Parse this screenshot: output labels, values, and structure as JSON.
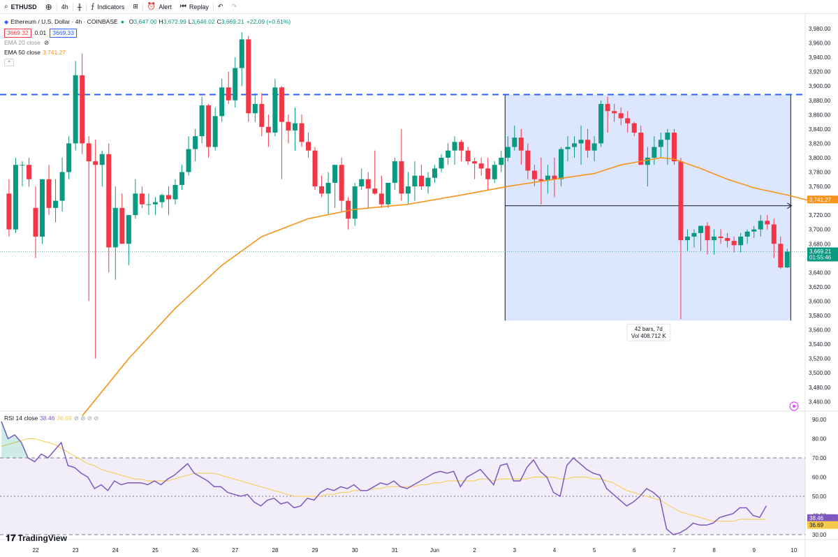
{
  "toolbar": {
    "symbol": "ETHUSD",
    "interval": "4h",
    "indicators_label": "Indicators",
    "alert_label": "Alert",
    "replay_label": "Replay"
  },
  "legend": {
    "title": "Ethereum / U.S. Dollar · 4h · COINBASE",
    "open_k": "O",
    "open": "3,647.00",
    "high_k": "H",
    "high": "3,672.99",
    "low_k": "L",
    "low": "3,646.02",
    "close_k": "C",
    "close": "3,669.21",
    "change": "+22.09 (+0.61%)",
    "bid": "3669.32",
    "spread": "0.01",
    "ask": "3669.33",
    "ema20": "EMA 20 close",
    "ema50": "EMA 50 close",
    "ema50_value": "3,741.27"
  },
  "rsi_legend": {
    "label": "RSI 14 close",
    "value1": "38.46",
    "value2": "36.69"
  },
  "measure": {
    "bars": "42 bars, 7d",
    "vol": "Vol 408.712 K"
  },
  "price_tags": {
    "ema": "3,741.27",
    "last": "3,669.21",
    "countdown": "01:55:46",
    "rsi1": "38.46",
    "rsi2": "36.69"
  },
  "brand": "TradingView",
  "colors": {
    "up": "#089981",
    "down": "#f23645",
    "ema": "#f7931a",
    "rsi": "#7e57c2",
    "rsi_ma": "#f7c948",
    "accent": "#2962ff"
  },
  "chart_data": [
    {
      "type": "candlestick",
      "title": "Ethereum / U.S. Dollar · 4h · COINBASE",
      "ylim": [
        3450,
        3990
      ],
      "y_ticks": [
        "3,980.00",
        "3,960.00",
        "3,940.00",
        "3,920.00",
        "3,900.00",
        "3,880.00",
        "3,860.00",
        "3,840.00",
        "3,820.00",
        "3,800.00",
        "3,780.00",
        "3,760.00",
        "3,740.00",
        "3,720.00",
        "3,700.00",
        "3,680.00",
        "3,660.00",
        "3,640.00",
        "3,620.00",
        "3,600.00",
        "3,580.00",
        "3,560.00",
        "3,540.00",
        "3,520.00",
        "3,500.00",
        "3,480.00",
        "3,460.00"
      ],
      "x_ticks": [
        {
          "label": "22",
          "bar": 4
        },
        {
          "label": "23",
          "bar": 10
        },
        {
          "label": "24",
          "bar": 16
        },
        {
          "label": "25",
          "bar": 22
        },
        {
          "label": "26",
          "bar": 28
        },
        {
          "label": "27",
          "bar": 34
        },
        {
          "label": "28",
          "bar": 40
        },
        {
          "label": "29",
          "bar": 46
        },
        {
          "label": "30",
          "bar": 52
        },
        {
          "label": "31",
          "bar": 58
        },
        {
          "label": "Jun",
          "bar": 64
        },
        {
          "label": "2",
          "bar": 70
        },
        {
          "label": "3",
          "bar": 76
        },
        {
          "label": "4",
          "bar": 82
        },
        {
          "label": "5",
          "bar": 88
        },
        {
          "label": "6",
          "bar": 94
        },
        {
          "label": "7",
          "bar": 100
        },
        {
          "label": "8",
          "bar": 106
        },
        {
          "label": "9",
          "bar": 112
        },
        {
          "label": "10",
          "bar": 118
        }
      ],
      "horizontal_line": 3888,
      "measure_box": {
        "from_bar": 75,
        "to_bar": 117,
        "from_price": 3888,
        "to_price": 3573,
        "arrow_price": 3733
      },
      "candles": [
        [
          3750,
          3770,
          3690,
          3700
        ],
        [
          3700,
          3800,
          3695,
          3790
        ],
        [
          3790,
          3795,
          3760,
          3790
        ],
        [
          3790,
          3800,
          3760,
          3770
        ],
        [
          3730,
          3760,
          3660,
          3690
        ],
        [
          3690,
          3770,
          3680,
          3770
        ],
        [
          3770,
          3790,
          3720,
          3730
        ],
        [
          3730,
          3770,
          3710,
          3740
        ],
        [
          3740,
          3800,
          3725,
          3780
        ],
        [
          3780,
          3830,
          3770,
          3820
        ],
        [
          3820,
          3935,
          3810,
          3915
        ],
        [
          3915,
          3945,
          3805,
          3820
        ],
        [
          3820,
          3830,
          3600,
          3795
        ],
        [
          3795,
          3825,
          3520,
          3790
        ],
        [
          3790,
          3810,
          3760,
          3805
        ],
        [
          3805,
          3820,
          3640,
          3675
        ],
        [
          3675,
          3760,
          3630,
          3730
        ],
        [
          3730,
          3750,
          3680,
          3680
        ],
        [
          3680,
          3720,
          3650,
          3720
        ],
        [
          3720,
          3770,
          3715,
          3750
        ],
        [
          3750,
          3760,
          3730,
          3735
        ],
        [
          3735,
          3750,
          3720,
          3735
        ],
        [
          3735,
          3745,
          3720,
          3738
        ],
        [
          3738,
          3750,
          3730,
          3748
        ],
        [
          3748,
          3760,
          3720,
          3742
        ],
        [
          3742,
          3770,
          3735,
          3762
        ],
        [
          3762,
          3790,
          3755,
          3780
        ],
        [
          3780,
          3830,
          3775,
          3812
        ],
        [
          3812,
          3840,
          3795,
          3830
        ],
        [
          3830,
          3885,
          3820,
          3873
        ],
        [
          3873,
          3875,
          3800,
          3815
        ],
        [
          3815,
          3870,
          3810,
          3858
        ],
        [
          3858,
          3910,
          3850,
          3898
        ],
        [
          3898,
          3920,
          3875,
          3880
        ],
        [
          3880,
          3940,
          3870,
          3925
        ],
        [
          3925,
          3975,
          3900,
          3965
        ],
        [
          3965,
          3970,
          3850,
          3862
        ],
        [
          3862,
          3890,
          3850,
          3875
        ],
        [
          3875,
          3890,
          3830,
          3843
        ],
        [
          3843,
          3860,
          3815,
          3835
        ],
        [
          3835,
          3910,
          3830,
          3898
        ],
        [
          3898,
          3900,
          3770,
          3850
        ],
        [
          3850,
          3860,
          3820,
          3838
        ],
        [
          3838,
          3870,
          3810,
          3848
        ],
        [
          3848,
          3860,
          3815,
          3822
        ],
        [
          3822,
          3835,
          3800,
          3810
        ],
        [
          3810,
          3815,
          3755,
          3760
        ],
        [
          3760,
          3775,
          3745,
          3750
        ],
        [
          3750,
          3780,
          3720,
          3765
        ],
        [
          3765,
          3790,
          3730,
          3790
        ],
        [
          3790,
          3800,
          3725,
          3740
        ],
        [
          3740,
          3745,
          3700,
          3715
        ],
        [
          3715,
          3765,
          3705,
          3760
        ],
        [
          3760,
          3785,
          3755,
          3770
        ],
        [
          3770,
          3780,
          3730,
          3757
        ],
        [
          3757,
          3810,
          3748,
          3750
        ],
        [
          3750,
          3775,
          3730,
          3735
        ],
        [
          3735,
          3765,
          3730,
          3765
        ],
        [
          3765,
          3800,
          3755,
          3795
        ],
        [
          3795,
          3840,
          3740,
          3750
        ],
        [
          3750,
          3780,
          3735,
          3760
        ],
        [
          3760,
          3795,
          3740,
          3775
        ],
        [
          3775,
          3790,
          3755,
          3760
        ],
        [
          3760,
          3780,
          3750,
          3772
        ],
        [
          3772,
          3790,
          3765,
          3785
        ],
        [
          3785,
          3805,
          3780,
          3800
        ],
        [
          3800,
          3820,
          3790,
          3810
        ],
        [
          3810,
          3830,
          3790,
          3822
        ],
        [
          3822,
          3825,
          3795,
          3810
        ],
        [
          3810,
          3815,
          3790,
          3795
        ],
        [
          3795,
          3800,
          3770,
          3792
        ],
        [
          3792,
          3800,
          3775,
          3785
        ],
        [
          3785,
          3800,
          3755,
          3770
        ],
        [
          3770,
          3795,
          3765,
          3790
        ],
        [
          3790,
          3810,
          3780,
          3800
        ],
        [
          3800,
          3830,
          3795,
          3815
        ],
        [
          3815,
          3845,
          3810,
          3828
        ],
        [
          3828,
          3840,
          3790,
          3810
        ],
        [
          3810,
          3820,
          3770,
          3782
        ],
        [
          3782,
          3790,
          3760,
          3770
        ],
        [
          3770,
          3800,
          3735,
          3768
        ],
        [
          3768,
          3790,
          3750,
          3775
        ],
        [
          3775,
          3800,
          3745,
          3770
        ],
        [
          3770,
          3815,
          3760,
          3812
        ],
        [
          3812,
          3830,
          3795,
          3815
        ],
        [
          3815,
          3830,
          3800,
          3820
        ],
        [
          3820,
          3845,
          3790,
          3825
        ],
        [
          3825,
          3840,
          3800,
          3810
        ],
        [
          3810,
          3830,
          3795,
          3820
        ],
        [
          3820,
          3880,
          3815,
          3875
        ],
        [
          3875,
          3885,
          3835,
          3865
        ],
        [
          3865,
          3875,
          3850,
          3862
        ],
        [
          3862,
          3870,
          3845,
          3855
        ],
        [
          3855,
          3865,
          3835,
          3848
        ],
        [
          3848,
          3850,
          3830,
          3835
        ],
        [
          3835,
          3845,
          3790,
          3790
        ],
        [
          3790,
          3815,
          3760,
          3800
        ],
        [
          3800,
          3830,
          3790,
          3815
        ],
        [
          3815,
          3835,
          3800,
          3825
        ],
        [
          3825,
          3840,
          3790,
          3835
        ],
        [
          3835,
          3840,
          3790,
          3795
        ],
        [
          3795,
          3800,
          3575,
          3685
        ],
        [
          3685,
          3700,
          3670,
          3690
        ],
        [
          3690,
          3700,
          3675,
          3695
        ],
        [
          3695,
          3705,
          3670,
          3705
        ],
        [
          3705,
          3710,
          3665,
          3685
        ],
        [
          3685,
          3700,
          3665,
          3690
        ],
        [
          3690,
          3700,
          3680,
          3688
        ],
        [
          3688,
          3695,
          3675,
          3684
        ],
        [
          3684,
          3690,
          3668,
          3678
        ],
        [
          3678,
          3695,
          3668,
          3690
        ],
        [
          3690,
          3700,
          3680,
          3697
        ],
        [
          3697,
          3705,
          3688,
          3700
        ],
        [
          3700,
          3720,
          3690,
          3712
        ],
        [
          3712,
          3720,
          3700,
          3707
        ],
        [
          3707,
          3715,
          3660,
          3680
        ],
        [
          3680,
          3690,
          3645,
          3647
        ],
        [
          3647,
          3673,
          3646,
          3669
        ]
      ],
      "ema50": [
        [
          11,
          3440
        ],
        [
          18,
          3520
        ],
        [
          25,
          3590
        ],
        [
          32,
          3650
        ],
        [
          38,
          3690
        ],
        [
          45,
          3715
        ],
        [
          52,
          3728
        ],
        [
          60,
          3735
        ],
        [
          68,
          3748
        ],
        [
          75,
          3760
        ],
        [
          82,
          3770
        ],
        [
          88,
          3778
        ],
        [
          92,
          3790
        ],
        [
          98,
          3800
        ],
        [
          100,
          3798
        ],
        [
          104,
          3785
        ],
        [
          108,
          3770
        ],
        [
          112,
          3758
        ],
        [
          117,
          3748
        ],
        [
          120,
          3741
        ]
      ]
    },
    {
      "type": "line",
      "title": "RSI 14 close",
      "ylim": [
        25,
        95
      ],
      "y_ticks": [
        "90.00",
        "80.00",
        "70.00",
        "60.00",
        "50.00",
        "40.00",
        "30.00"
      ],
      "bands": [
        30,
        50,
        70
      ],
      "series": [
        {
          "name": "RSI",
          "values": [
            89,
            80,
            82,
            78,
            70,
            68,
            72,
            70,
            74,
            78,
            66,
            65,
            62,
            60,
            54,
            56,
            53,
            58,
            56,
            57,
            57,
            57,
            56,
            58,
            56,
            59,
            61,
            64,
            67,
            62,
            60,
            58,
            55,
            55,
            52,
            51,
            50,
            51,
            47,
            45,
            48,
            49,
            46,
            47,
            44,
            45,
            49,
            48,
            52,
            54,
            53,
            55,
            54,
            56,
            53,
            53,
            55,
            57,
            56,
            58,
            55,
            54,
            56,
            58,
            60,
            62,
            63,
            62,
            63,
            55,
            60,
            62,
            64,
            60,
            56,
            66,
            67,
            58,
            58,
            65,
            69,
            63,
            60,
            52,
            50,
            66,
            70,
            67,
            64,
            62,
            61,
            54,
            51,
            48,
            45,
            47,
            50,
            54,
            52,
            49,
            33,
            30,
            31,
            33,
            36,
            35,
            35,
            36,
            39,
            40,
            41,
            44,
            44,
            40,
            39,
            45
          ]
        },
        {
          "name": "MA",
          "values": [
            76,
            77,
            78,
            79,
            80,
            80,
            79,
            78,
            77,
            75,
            73,
            71,
            69,
            67,
            66,
            64,
            63,
            62,
            61,
            60,
            59,
            59,
            58,
            58,
            58,
            58,
            59,
            60,
            61,
            62,
            62,
            62,
            62,
            61,
            60,
            59,
            58,
            57,
            56,
            55,
            54,
            53,
            52,
            51,
            50,
            50,
            50,
            50,
            50,
            51,
            51,
            52,
            52,
            53,
            53,
            53,
            54,
            54,
            55,
            55,
            55,
            55,
            55,
            56,
            56,
            57,
            57,
            58,
            58,
            58,
            58,
            58,
            59,
            59,
            58,
            59,
            59,
            59,
            59,
            59,
            60,
            60,
            60,
            60,
            59,
            59,
            60,
            60,
            60,
            59,
            59,
            58,
            57,
            55,
            53,
            52,
            51,
            50,
            49,
            48,
            46,
            44,
            42,
            41,
            40,
            39,
            38,
            37,
            37,
            37,
            37,
            38,
            38,
            38,
            38,
            38
          ]
        }
      ]
    }
  ]
}
